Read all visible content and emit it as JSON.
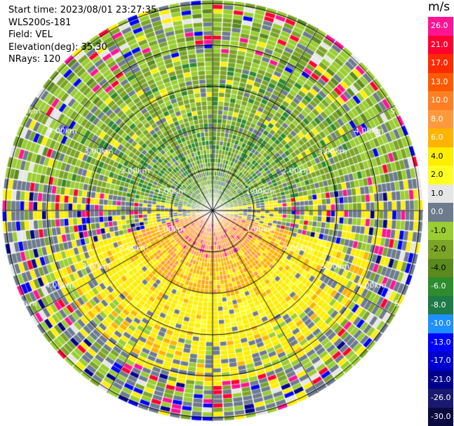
{
  "header": {
    "start_time": "Start time: 2023/08/01 23:27:35",
    "instrument": "WLS200s-181",
    "field": "Field: VEL",
    "elevation": "Elevation(deg): 35.30",
    "nrays": "NRays: 120"
  },
  "range_rings": [
    "1.00km",
    "2.00km",
    "3.00km",
    "4.00km",
    "5.00km"
  ],
  "colorbar": {
    "unit": "m/s",
    "ticks": [
      "26.0",
      "21.0",
      "17.0",
      "13.0",
      "10.0",
      "8.0",
      "6.0",
      "4.0",
      "2.0",
      "1.0",
      "0.0",
      "-1.0",
      "-2.0",
      "-4.0",
      "-6.0",
      "-8.0",
      "-10.0",
      "-13.0",
      "-17.0",
      "-21.0",
      "-26.0",
      "-30.0"
    ],
    "colors": [
      "#ff1493",
      "#ff0030",
      "#ff2a00",
      "#ff5a00",
      "#ff7f24",
      "#ff9a3c",
      "#ffb400",
      "#ffee00",
      "#ffff22",
      "#e6e6e6",
      "#6d7b8d",
      "#9acd32",
      "#7ba428",
      "#5a8a1e",
      "#2e8b2e",
      "#1e7a48",
      "#1e90ff",
      "#0000ff",
      "#0000cd",
      "#00008b",
      "#191970",
      "#0a0a40"
    ]
  }
}
